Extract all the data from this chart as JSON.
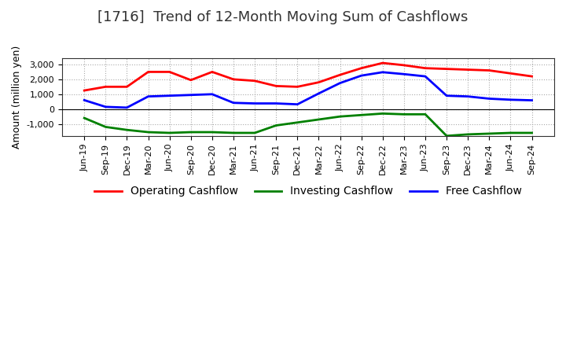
{
  "title": "[1716]  Trend of 12-Month Moving Sum of Cashflows",
  "ylabel": "Amount (million yen)",
  "x_labels": [
    "Jun-19",
    "Sep-19",
    "Dec-19",
    "Mar-20",
    "Jun-20",
    "Sep-20",
    "Dec-20",
    "Mar-21",
    "Jun-21",
    "Sep-21",
    "Dec-21",
    "Mar-22",
    "Jun-22",
    "Sep-22",
    "Dec-22",
    "Mar-23",
    "Jun-23",
    "Sep-23",
    "Dec-23",
    "Mar-24",
    "Jun-24",
    "Sep-24"
  ],
  "operating": [
    1250,
    1500,
    1500,
    2500,
    2500,
    1950,
    2500,
    2000,
    1900,
    1550,
    1500,
    1800,
    2300,
    2750,
    3100,
    2950,
    2750,
    2700,
    2650,
    2600,
    2400,
    2200
  ],
  "investing": [
    -600,
    -1200,
    -1400,
    -1550,
    -1600,
    -1550,
    -1550,
    -1600,
    -1600,
    -1100,
    -900,
    -700,
    -500,
    -400,
    -300,
    -350,
    -350,
    -1800,
    -1700,
    -1650,
    -1600,
    -1600
  ],
  "free": [
    600,
    150,
    100,
    850,
    900,
    950,
    1000,
    420,
    380,
    380,
    320,
    1050,
    1750,
    2250,
    2480,
    2350,
    2200,
    900,
    850,
    700,
    630,
    590
  ],
  "operating_color": "#ff0000",
  "investing_color": "#008000",
  "free_color": "#0000ff",
  "ylim": [
    -1800,
    3400
  ],
  "yticks": [
    -1000,
    0,
    1000,
    2000,
    3000
  ],
  "background_color": "#ffffff",
  "plot_bg_color": "#ffffff",
  "grid_color": "#aaaaaa",
  "title_fontsize": 13,
  "axis_fontsize": 9,
  "tick_fontsize": 8,
  "legend_fontsize": 10
}
